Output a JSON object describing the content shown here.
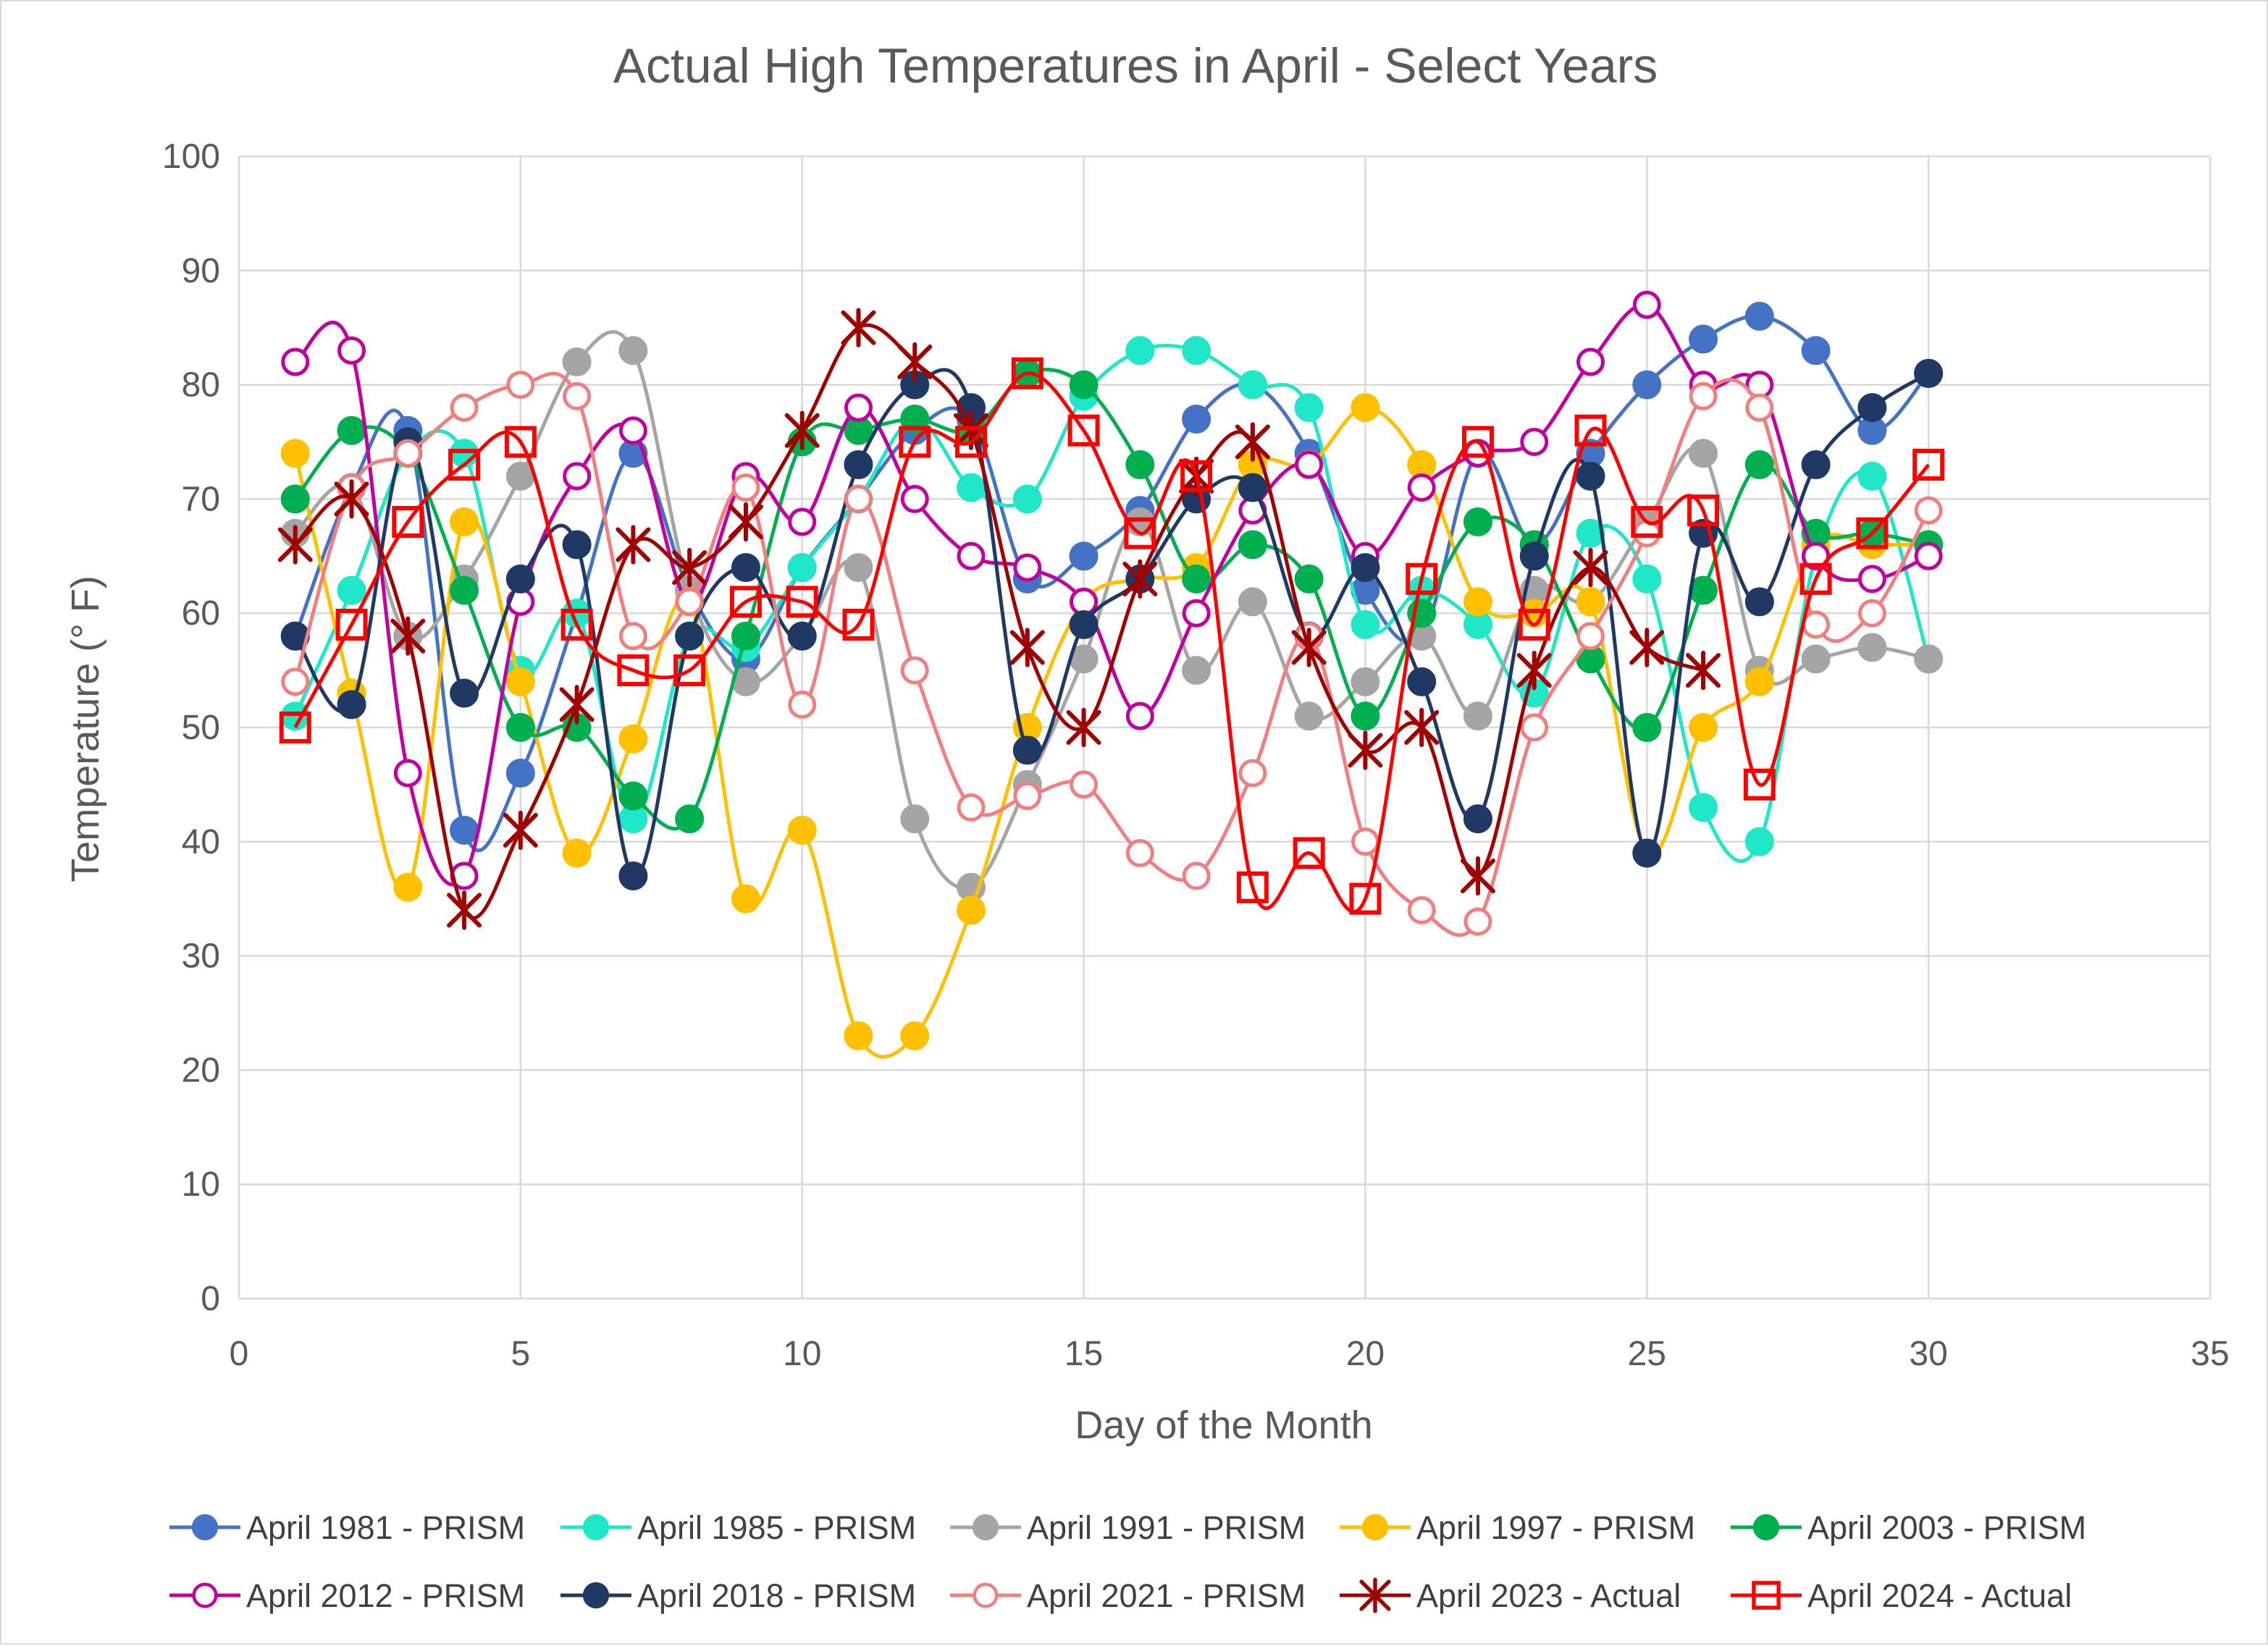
{
  "chart_data": {
    "type": "line",
    "title": "Actual High Temperatures in April - Select Years",
    "xlabel": "Day of the Month",
    "ylabel": "Temperature (° F)",
    "xlim": [
      0,
      35
    ],
    "ylim": [
      0,
      100
    ],
    "xticks": [
      0,
      5,
      10,
      15,
      20,
      25,
      30,
      35
    ],
    "yticks": [
      0,
      10,
      20,
      30,
      40,
      50,
      60,
      70,
      80,
      90,
      100
    ],
    "grid": true,
    "smooth": true,
    "legend_position": "bottom",
    "x": [
      1,
      2,
      3,
      4,
      5,
      6,
      7,
      8,
      9,
      10,
      11,
      12,
      13,
      14,
      15,
      16,
      17,
      18,
      19,
      20,
      21,
      22,
      23,
      24,
      25,
      26,
      27,
      28,
      29,
      30
    ],
    "series": [
      {
        "name": "April 1981 - PRISM",
        "color": "#4472C4",
        "marker": "filled-circle",
        "values": [
          58,
          71,
          76,
          41,
          46,
          60,
          74,
          62,
          56,
          64,
          70,
          76,
          77,
          63,
          65,
          69,
          77,
          80,
          74,
          62,
          58,
          74,
          66,
          74,
          80,
          84,
          86,
          83,
          76,
          81
        ]
      },
      {
        "name": "April 1985 - PRISM",
        "color": "#1EE8C8",
        "marker": "filled-circle",
        "values": [
          51,
          62,
          74,
          74,
          55,
          60,
          42,
          58,
          57,
          64,
          70,
          77,
          71,
          70,
          79,
          83,
          83,
          80,
          78,
          59,
          62,
          59,
          53,
          67,
          63,
          43,
          40,
          65,
          72,
          56
        ]
      },
      {
        "name": "April 1991 - PRISM",
        "color": "#A5A5A5",
        "marker": "filled-circle",
        "values": [
          67,
          71,
          58,
          63,
          72,
          82,
          83,
          62,
          54,
          58,
          64,
          42,
          36,
          45,
          56,
          68,
          55,
          61,
          51,
          54,
          58,
          51,
          62,
          61,
          68,
          74,
          55,
          56,
          57,
          56
        ]
      },
      {
        "name": "April 1997 - PRISM",
        "color": "#FFC000",
        "marker": "filled-circle",
        "values": [
          74,
          53,
          36,
          68,
          54,
          39,
          49,
          61,
          35,
          41,
          23,
          23,
          34,
          50,
          61,
          63,
          64,
          73,
          73,
          78,
          73,
          61,
          60,
          61,
          39,
          50,
          54,
          66,
          66,
          66
        ]
      },
      {
        "name": "April 2003 - PRISM",
        "color": "#00B050",
        "marker": "filled-circle",
        "values": [
          70,
          76,
          74,
          62,
          50,
          50,
          44,
          42,
          58,
          75,
          76,
          77,
          76,
          81,
          80,
          73,
          63,
          66,
          63,
          51,
          60,
          68,
          66,
          56,
          50,
          62,
          73,
          67,
          67,
          66
        ]
      },
      {
        "name": "April 2012 - PRISM",
        "color": "#C000A0",
        "marker": "open-circle",
        "values": [
          82,
          83,
          46,
          37,
          61,
          72,
          76,
          61,
          72,
          68,
          78,
          70,
          65,
          64,
          61,
          51,
          60,
          69,
          73,
          65,
          71,
          74,
          75,
          82,
          87,
          80,
          80,
          65,
          63,
          65
        ]
      },
      {
        "name": "April 2018 - PRISM",
        "color": "#203864",
        "marker": "filled-circle",
        "values": [
          58,
          52,
          75,
          53,
          63,
          66,
          37,
          58,
          64,
          58,
          73,
          80,
          78,
          48,
          59,
          63,
          70,
          71,
          58,
          64,
          54,
          42,
          65,
          72,
          39,
          67,
          61,
          73,
          78,
          81
        ]
      },
      {
        "name": "April 2021 - PRISM",
        "color": "#F08080",
        "marker": "open-circle",
        "values": [
          54,
          71,
          74,
          78,
          80,
          79,
          58,
          61,
          71,
          52,
          70,
          55,
          43,
          44,
          45,
          39,
          37,
          46,
          58,
          40,
          34,
          33,
          50,
          58,
          67,
          79,
          78,
          59,
          60,
          69
        ]
      },
      {
        "name": "April 2023 - Actual",
        "color": "#A00000",
        "marker": "star",
        "values": [
          66,
          70,
          58,
          34,
          41,
          52,
          66,
          64,
          68,
          76,
          85,
          82,
          76,
          57,
          50,
          63,
          72,
          75,
          57,
          48,
          50,
          37,
          55,
          64,
          57,
          55,
          null,
          null,
          null,
          null
        ]
      },
      {
        "name": "April 2024 - Actual",
        "color": "#FF0000",
        "marker": "open-square",
        "values": [
          50,
          59,
          68,
          73,
          75,
          59,
          55,
          55,
          61,
          61,
          59,
          75,
          75,
          81,
          76,
          67,
          72,
          36,
          39,
          35,
          63,
          75,
          59,
          76,
          68,
          69,
          45,
          63,
          67,
          73
        ]
      }
    ]
  }
}
